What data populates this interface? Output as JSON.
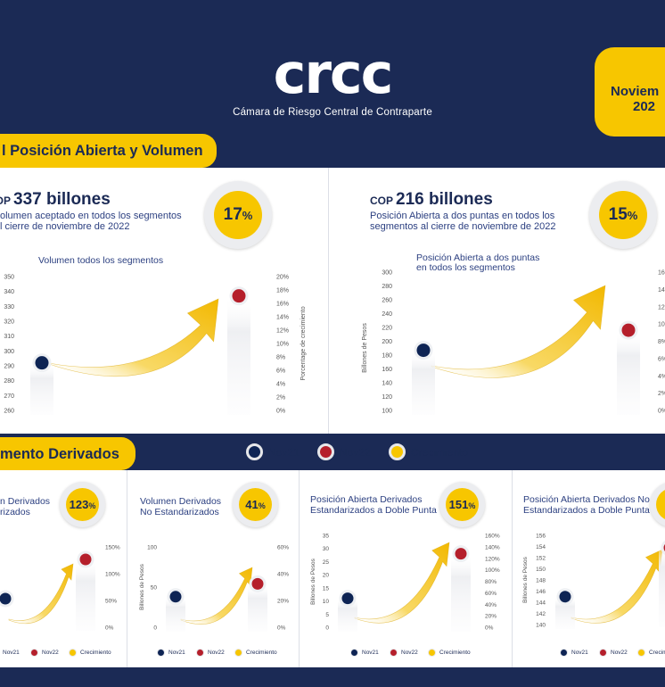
{
  "header": {
    "logo_text": "crcc",
    "logo_subtitle": "Cámara de Riesgo Central de Contraparte",
    "date_month": "Noviem",
    "date_year": "202"
  },
  "colors": {
    "nov21": "#0e2454",
    "nov22": "#b51f2b",
    "crecimiento": "#f7c600"
  },
  "section1": {
    "tab_label": "l Posición Abierta y Volumen",
    "left": {
      "currency": "COP",
      "amount": "337 billones",
      "desc_line1": "olumen aceptado en todos los segmentos",
      "desc_line2": "l cierre de noviembre de 2022",
      "pct_value": "17",
      "pct_sign": "%",
      "chart_title": "Volumen todos  los segmentos"
    },
    "right": {
      "currency": "COP",
      "amount": "216 billones",
      "desc_line1": "Posición Abierta a dos puntas en todos los",
      "desc_line2": "segmentos al cierre de noviembre de 2022",
      "pct_value": "15",
      "pct_sign": "%",
      "chart_title_line1": "Posición Abierta a dos puntas",
      "chart_title_line2": "en todos los segmentos"
    }
  },
  "legend": {
    "nov21": "Nov21",
    "nov22": "Nov22",
    "crecimiento": "Crecimiento"
  },
  "section2": {
    "tab_label": "mento Derivados",
    "panels": [
      {
        "title_line1": "n Derivados",
        "title_line2": "rizados",
        "pct_value": "123",
        "pct_sign": "%"
      },
      {
        "title_line1": "Volumen Derivados",
        "title_line2": "No Estandarizados",
        "pct_value": "41",
        "pct_sign": "%"
      },
      {
        "title_line1": "Posición Abierta Derivados",
        "title_line2": "Estandarizados a Doble Punta",
        "pct_value": "151",
        "pct_sign": "%"
      },
      {
        "title_line1": "Posición Abierta Derivados No",
        "title_line2": "Estandarizados a Doble Punta",
        "pct_value": "",
        "pct_sign": ""
      }
    ],
    "mini_legend": {
      "nov21": "Nov21",
      "nov22": "Nov22",
      "crecimiento": "Crecimiento"
    }
  },
  "chart_data": [
    {
      "type": "scatter",
      "title": "Volumen todos  los segmentos",
      "ylabel": "",
      "y2label": "Porcentage de crecimiento",
      "ylim": [
        260,
        350
      ],
      "y2lim": [
        0,
        20
      ],
      "y_ticks": [
        "350",
        "340",
        "330",
        "320",
        "310",
        "300",
        "290",
        "280",
        "270",
        "260"
      ],
      "y2_ticks": [
        "20%",
        "18%",
        "16%",
        "14%",
        "12%",
        "10%",
        "8%",
        "6%",
        "4%",
        "2%",
        "0%"
      ],
      "series": [
        {
          "name": "Nov21",
          "values": [
            292
          ]
        },
        {
          "name": "Nov22",
          "values": [
            337
          ]
        },
        {
          "name": "Crecimiento",
          "values": [
            17
          ]
        }
      ]
    },
    {
      "type": "scatter",
      "title": "Posición Abierta a dos puntas en todos los segmentos",
      "ylabel": "Billones de Pesos",
      "ylim": [
        100,
        300
      ],
      "y2lim": [
        0,
        16
      ],
      "y_ticks": [
        "300",
        "280",
        "260",
        "240",
        "220",
        "200",
        "180",
        "160",
        "140",
        "120",
        "100"
      ],
      "y2_ticks": [
        "16",
        "14",
        "12",
        "10",
        "8%",
        "6%",
        "4%",
        "2%",
        "0%"
      ],
      "series": [
        {
          "name": "Nov21",
          "values": [
            187
          ]
        },
        {
          "name": "Nov22",
          "values": [
            216
          ]
        },
        {
          "name": "Crecimiento",
          "values": [
            15
          ]
        }
      ]
    },
    {
      "type": "scatter",
      "title": "",
      "ylabel": "",
      "y2lim": [
        0,
        150
      ],
      "y2_ticks": [
        "150%",
        "100%",
        "50%",
        "0%"
      ],
      "series": [
        {
          "name": "Nov21",
          "values": []
        },
        {
          "name": "Nov22",
          "values": []
        },
        {
          "name": "Crecimiento",
          "values": [
            123
          ]
        }
      ]
    },
    {
      "type": "scatter",
      "title": "Volumen Derivados No Estandarizados",
      "ylabel": "Billones de Pesos",
      "ylim": [
        0,
        100
      ],
      "y2lim": [
        0,
        60
      ],
      "y_ticks": [
        "100",
        "50",
        "0"
      ],
      "y2_ticks": [
        "60%",
        "40%",
        "20%",
        "0%"
      ],
      "series": [
        {
          "name": "Nov21",
          "values": [
            38
          ]
        },
        {
          "name": "Nov22",
          "values": [
            54
          ]
        },
        {
          "name": "Crecimiento",
          "values": [
            41
          ]
        }
      ]
    },
    {
      "type": "scatter",
      "title": "Posición Abierta Derivados Estandarizados a Doble Punta",
      "ylabel": "Billones de Pesos",
      "ylim": [
        0,
        35
      ],
      "y2lim": [
        0,
        160
      ],
      "y_ticks": [
        "35",
        "30",
        "25",
        "20",
        "15",
        "10",
        "5",
        "0"
      ],
      "y2_ticks": [
        "160%",
        "140%",
        "120%",
        "100%",
        "80%",
        "60%",
        "40%",
        "20%",
        "0%"
      ],
      "series": [
        {
          "name": "Nov21",
          "values": [
            11
          ]
        },
        {
          "name": "Nov22",
          "values": [
            28
          ]
        },
        {
          "name": "Crecimiento",
          "values": [
            151
          ]
        }
      ]
    },
    {
      "type": "scatter",
      "title": "Posición Abierta Derivados No Estandarizados a Doble Punta",
      "ylabel": "Billones de Pesos",
      "ylim": [
        140,
        156
      ],
      "y_ticks": [
        "156",
        "154",
        "152",
        "150",
        "148",
        "146",
        "144",
        "142",
        "140"
      ],
      "series": [
        {
          "name": "Nov21",
          "values": [
            145
          ]
        },
        {
          "name": "Nov22",
          "values": []
        },
        {
          "name": "Crecimiento",
          "values": []
        }
      ]
    }
  ]
}
